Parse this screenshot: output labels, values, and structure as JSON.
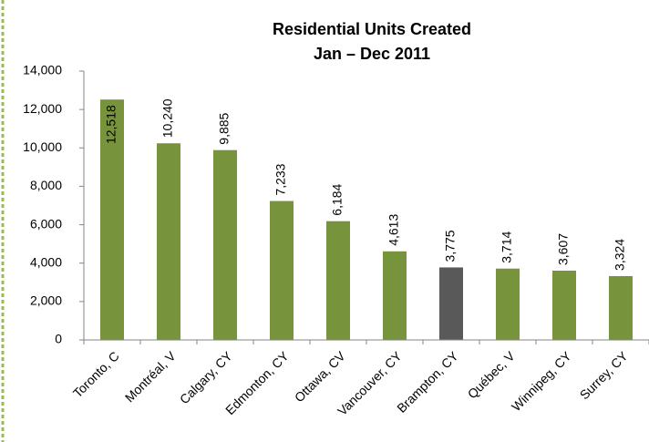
{
  "chart_data": {
    "type": "bar",
    "title": [
      "Residential Units Created",
      "Jan – Dec 2011"
    ],
    "categories": [
      "Toronto, C",
      "Montréal, V",
      "Calgary, CY",
      "Edmonton, CY",
      "Ottawa, CV",
      "Vancouver, CY",
      "Brampton, CY",
      "Québec, V",
      "Winnipeg, CY",
      "Surrey, CY"
    ],
    "values": [
      12518,
      10240,
      9885,
      7233,
      6184,
      4613,
      3775,
      3714,
      3607,
      3324
    ],
    "value_labels": [
      "12,518",
      "10,240",
      "9,885",
      "7,233",
      "6,184",
      "4,613",
      "3,775",
      "3,714",
      "3,607",
      "3,324"
    ],
    "colors": [
      "#77933c",
      "#77933c",
      "#77933c",
      "#77933c",
      "#77933c",
      "#77933c",
      "#595959",
      "#77933c",
      "#77933c",
      "#77933c"
    ],
    "ylim": [
      0,
      14000
    ],
    "yticks": [
      0,
      {
        "value": 2000,
        "label": "2,000"
      },
      {
        "value": 4000,
        "label": "4,000"
      },
      {
        "value": 6000,
        "label": "6,000"
      },
      {
        "value": 8000,
        "label": "8,000"
      },
      {
        "value": 10000,
        "label": "10,000"
      },
      {
        "value": 12000,
        "label": "12,000"
      },
      {
        "value": 14000,
        "label": "14,000"
      }
    ],
    "grid": false
  }
}
